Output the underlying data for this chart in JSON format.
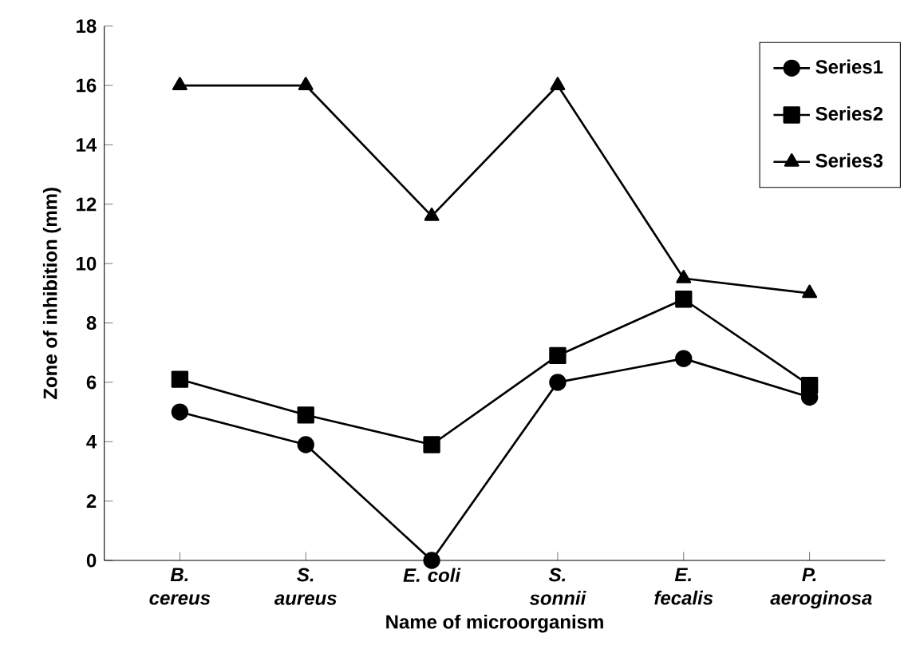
{
  "chart_data": {
    "type": "line",
    "xlabel": "Name of microorganism",
    "ylabel": "Zone of inhibition (mm)",
    "categories": [
      "B. cereus",
      "S. aureus",
      "E. coli",
      "S. sonnii",
      "E. fecalis",
      "P. aeroginosa"
    ],
    "ylim": [
      0,
      18
    ],
    "yticks": [
      0,
      2,
      4,
      6,
      8,
      10,
      12,
      14,
      16,
      18
    ],
    "legend": "top right",
    "grid": false,
    "series": [
      {
        "name": "Series1",
        "color": "#000000",
        "marker": "circle",
        "values": [
          5.0,
          3.9,
          0,
          6.0,
          6.8,
          5.5
        ]
      },
      {
        "name": "Series2",
        "color": "#000000",
        "marker": "square",
        "values": [
          6.1,
          4.9,
          3.9,
          6.9,
          8.8,
          5.9
        ]
      },
      {
        "name": "Series3",
        "color": "#000000",
        "marker": "triangle",
        "values": [
          16,
          16,
          11.6,
          16,
          9.5,
          9.0
        ]
      }
    ]
  }
}
